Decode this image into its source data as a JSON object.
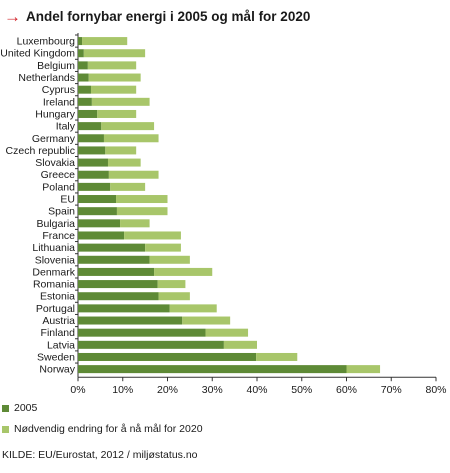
{
  "chart_data": {
    "type": "bar",
    "orientation": "horizontal",
    "stacked": true,
    "title": "Andel fornybar energi i 2005 og mål for 2020",
    "xlim": [
      0,
      80
    ],
    "x_ticks": [
      "0%",
      "10%",
      "20%",
      "30%",
      "40%",
      "50%",
      "60%",
      "70%",
      "80%"
    ],
    "grid": false,
    "legend_position": "bottom",
    "categories": [
      "Luxembourg",
      "United Kingdom",
      "Belgium",
      "Netherlands",
      "Cyprus",
      "Ireland",
      "Hungary",
      "Italy",
      "Germany",
      "Czech republic",
      "Slovakia",
      "Greece",
      "Poland",
      "EU",
      "Spain",
      "Bulgaria",
      "France",
      "Lithuania",
      "Slovenia",
      "Denmark",
      "Romania",
      "Estonia",
      "Portugal",
      "Austria",
      "Finland",
      "Latvia",
      "Sweden",
      "Norway"
    ],
    "series": [
      {
        "name": "2005",
        "color": "#5e8a36",
        "values": [
          0.9,
          1.3,
          2.2,
          2.4,
          2.9,
          3.1,
          4.3,
          5.2,
          5.8,
          6.1,
          6.7,
          6.9,
          7.2,
          8.5,
          8.7,
          9.4,
          10.3,
          15.0,
          16.0,
          17.0,
          17.8,
          18.0,
          20.5,
          23.3,
          28.5,
          32.6,
          39.8,
          60.0
        ]
      },
      {
        "name": "Nødvendig endring for å nå mål for 2020",
        "color": "#a8c66a",
        "values": [
          10.1,
          13.7,
          10.8,
          11.6,
          10.1,
          12.9,
          8.7,
          11.8,
          12.2,
          6.9,
          7.3,
          11.1,
          7.8,
          11.5,
          11.3,
          6.6,
          12.7,
          8.0,
          9.0,
          13.0,
          6.2,
          7.0,
          10.5,
          10.7,
          9.5,
          7.4,
          9.2,
          7.5
        ]
      }
    ]
  },
  "legend": {
    "series1_label": "2005",
    "series2_label": "Nødvendig endring for å nå mål for 2020"
  },
  "source": "KILDE:  EU/Eurostat, 2012 / miljøstatus.no"
}
